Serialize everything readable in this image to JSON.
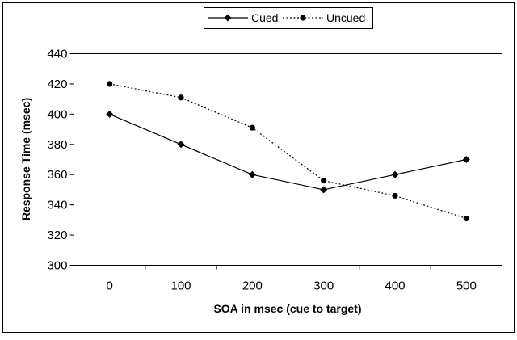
{
  "chart_data": {
    "type": "line",
    "title": "",
    "xlabel": "SOA in msec (cue to target)",
    "ylabel": "Response Time (msec)",
    "categories": [
      "0",
      "100",
      "200",
      "300",
      "400",
      "500"
    ],
    "x": [
      0,
      100,
      200,
      300,
      400,
      500
    ],
    "ylim": [
      300,
      440
    ],
    "yticks": [
      "300",
      "320",
      "340",
      "360",
      "380",
      "400",
      "420",
      "440"
    ],
    "grid": false,
    "legend_position": "top",
    "series": [
      {
        "name": "Cued",
        "values": [
          400,
          380,
          360,
          350,
          360,
          370
        ],
        "line_style": "solid",
        "marker": "diamond",
        "color": "#000000"
      },
      {
        "name": "Uncued",
        "values": [
          420,
          411,
          391,
          356,
          346,
          331
        ],
        "line_style": "dotted",
        "marker": "circle",
        "color": "#000000"
      }
    ]
  }
}
